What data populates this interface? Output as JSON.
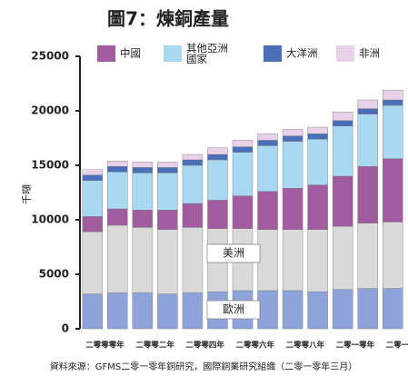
{
  "chart_data": {
    "type": "stacked_bar",
    "title": "圖7：煉銅產量",
    "y_label": "千噸",
    "source": "資料來源：GFMS二零一零年銅研究，國際銅業研究組織（二零一零年三月）",
    "categories": [
      "二零零零年",
      null,
      "二零零二年",
      null,
      "二零零四年",
      null,
      "二零零六年",
      null,
      "二零零八年",
      null,
      "二零一零年",
      null,
      "二零一二年"
    ],
    "series": [
      {
        "name": "歐洲",
        "color": "#8fa3db",
        "values": [
          3200,
          3300,
          3300,
          3200,
          3300,
          3400,
          3500,
          3500,
          3500,
          3400,
          3600,
          3700,
          3700
        ]
      },
      {
        "name": "美洲",
        "color": "#d9d9d9",
        "values": [
          5700,
          6200,
          6000,
          5900,
          6000,
          5800,
          5700,
          5600,
          5600,
          5700,
          5800,
          6000,
          6100
        ]
      },
      {
        "name": "中國",
        "color": "#a15ca0",
        "values": [
          1400,
          1500,
          1600,
          1800,
          2200,
          2600,
          3000,
          3500,
          3800,
          4100,
          4600,
          5200,
          5800
        ]
      },
      {
        "name": "其他亞洲國家",
        "color": "#a9d8f2",
        "values": [
          3300,
          3400,
          3400,
          3400,
          3500,
          3700,
          4000,
          4200,
          4300,
          4200,
          4600,
          4800,
          4900
        ]
      },
      {
        "name": "大洋洲",
        "color": "#4a6fb8",
        "values": [
          500,
          500,
          500,
          500,
          500,
          500,
          500,
          500,
          500,
          500,
          500,
          500,
          500
        ]
      },
      {
        "name": "非洲",
        "color": "#e9d1e9",
        "values": [
          500,
          500,
          500,
          500,
          500,
          600,
          600,
          600,
          600,
          600,
          800,
          800,
          900
        ]
      }
    ],
    "ylim": [
      0,
      25000
    ],
    "yticks": [
      0,
      5000,
      10000,
      15000,
      20000,
      25000
    ]
  }
}
